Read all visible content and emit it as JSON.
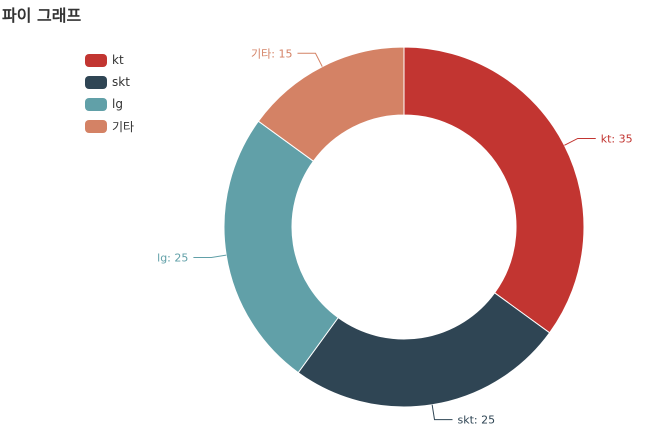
{
  "chart_data": {
    "type": "pie",
    "title": "파이 그래프",
    "categories": [
      "kt",
      "skt",
      "lg",
      "기타"
    ],
    "values": [
      35,
      25,
      25,
      15
    ],
    "colors": [
      "#c23531",
      "#2f4554",
      "#61a0a8",
      "#d48265"
    ],
    "legend_position": "top-left",
    "donut": true,
    "data_labels": [
      "kt: 35",
      "skt: 25",
      "lg: 25",
      "기타: 15"
    ]
  }
}
